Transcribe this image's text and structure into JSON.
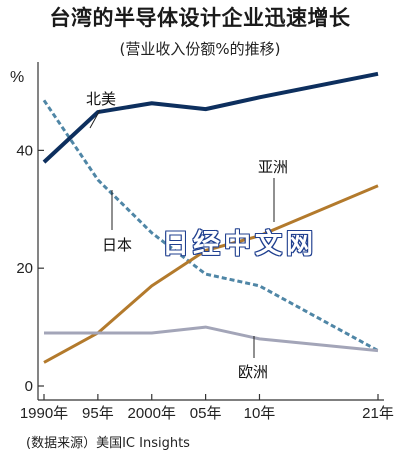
{
  "header": {
    "title": "台湾的半导体设计企业迅速增长",
    "subtitle": "(营业收入份额%的推移)"
  },
  "footer": {
    "source": "(数据来源）美国IC Insights"
  },
  "watermark": "日经中文网",
  "chart_data": {
    "type": "line",
    "title": "台湾的半导体设计企业迅速增长",
    "subtitle": "(营业收入份额%的推移)",
    "ylabel": "%",
    "xlabel": "",
    "x": [
      1990,
      1995,
      2000,
      2005,
      2010,
      2021
    ],
    "x_tick_labels": [
      "1990年",
      "95年",
      "2000年",
      "05年",
      "10年",
      "21年"
    ],
    "y_ticks": [
      0,
      20,
      40
    ],
    "ylim": [
      0,
      55
    ],
    "grid": false,
    "series": [
      {
        "name": "北美",
        "color": "#0d2f5e",
        "style": "solid",
        "values": [
          38,
          46.5,
          48,
          47,
          49,
          53
        ]
      },
      {
        "name": "日本",
        "color": "#4f86a6",
        "style": "dashed",
        "values": [
          48.5,
          35,
          26,
          19,
          17,
          6
        ]
      },
      {
        "name": "亚洲",
        "color": "#b37a2c",
        "style": "solid",
        "values": [
          4,
          9,
          17,
          23,
          25.5,
          34
        ]
      },
      {
        "name": "欧洲",
        "color": "#a3a5b8",
        "style": "solid",
        "values": [
          9,
          9,
          9,
          10,
          8,
          6
        ]
      }
    ]
  }
}
